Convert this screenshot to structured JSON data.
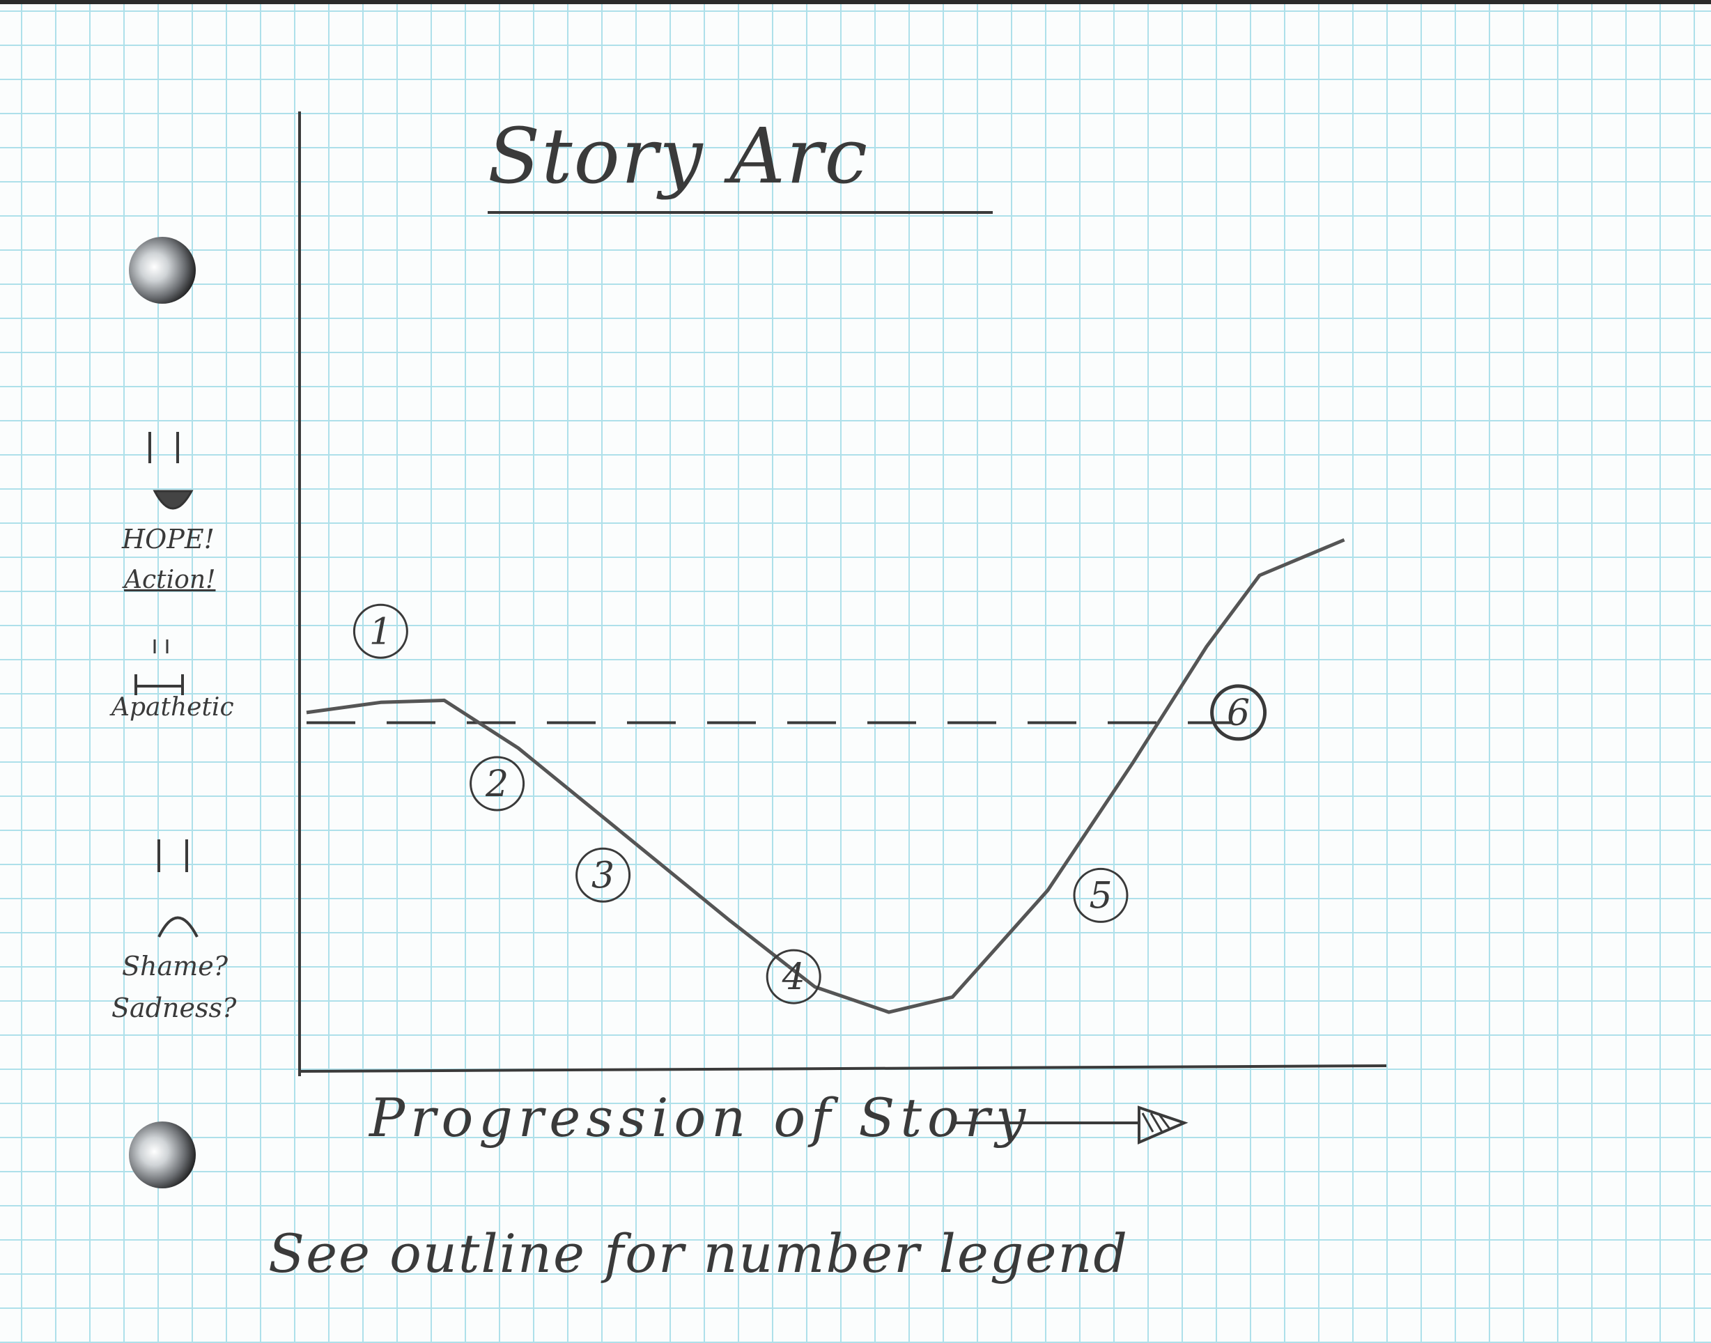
{
  "chart_data": {
    "type": "line",
    "title": "Story Arc",
    "xlabel": "Progression of Story",
    "ylabel": "",
    "note": "See outline for number legend",
    "y_levels": [
      {
        "label": "HOPE!",
        "level": 2
      },
      {
        "label": "Action!",
        "level": 2
      },
      {
        "label": "Apathetic",
        "level": 0
      },
      {
        "label": "Shame?",
        "level": -2
      },
      {
        "label": "Sadness?",
        "level": -2
      }
    ],
    "xlim": [
      0,
      100
    ],
    "ylim": [
      -3,
      3
    ],
    "baseline": 0,
    "series": [
      {
        "x": [
          0,
          7,
          13,
          20,
          30,
          40,
          48,
          55,
          61,
          70,
          78,
          85,
          90,
          98
        ],
        "y": [
          0.1,
          0.2,
          0.22,
          -0.25,
          -1.1,
          -1.95,
          -2.6,
          -2.85,
          -2.7,
          -1.65,
          -0.4,
          0.75,
          1.45,
          1.8
        ]
      }
    ],
    "annotations": [
      {
        "text": "1",
        "x": 7,
        "y": 0.9
      },
      {
        "text": "2",
        "x": 18,
        "y": -0.6
      },
      {
        "text": "3",
        "x": 28,
        "y": -1.5
      },
      {
        "text": "4",
        "x": 46,
        "y": -2.5
      },
      {
        "text": "5",
        "x": 75,
        "y": -1.7
      },
      {
        "text": "6",
        "x": 88,
        "y": 0.1
      }
    ]
  }
}
